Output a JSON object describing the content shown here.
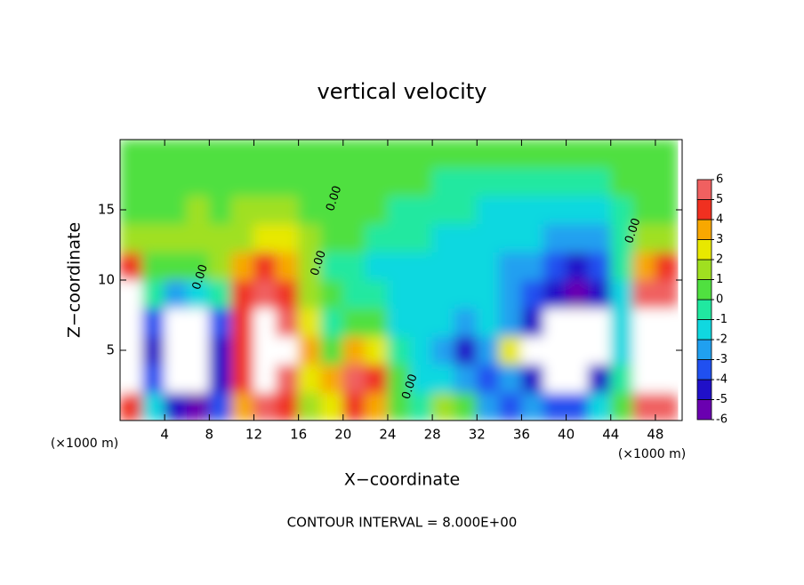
{
  "chart_data": {
    "type": "contour",
    "title": "vertical velocity",
    "x_label": "X−coordinate",
    "y_label": "Z−coordinate",
    "x_unit": "(×1000 m)",
    "footer": "CONTOUR INTERVAL = 8.000E+00",
    "xlim": [
      0,
      50.4
    ],
    "ylim": [
      0,
      20
    ],
    "xticks": [
      4,
      8,
      12,
      16,
      20,
      24,
      28,
      32,
      36,
      40,
      44,
      48
    ],
    "yticks": [
      5,
      10,
      15
    ],
    "x": [
      1,
      3,
      5,
      7,
      9,
      11,
      13,
      15,
      17,
      19,
      21,
      23,
      25,
      27,
      29,
      31,
      33,
      35,
      37,
      39,
      41,
      43,
      45,
      47,
      49
    ],
    "y": [
      1,
      3,
      5,
      7,
      9,
      11,
      13,
      15,
      17,
      19
    ],
    "values": [
      [
        4,
        8,
        8,
        8,
        7,
        4,
        1,
        0.5,
        0.5,
        0.5
      ],
      [
        -2,
        -4,
        -5,
        -4,
        -1,
        0.5,
        1,
        0.5,
        0.5,
        0.5
      ],
      [
        -5,
        -8,
        -8,
        -7,
        -3,
        0.5,
        1,
        0.5,
        0.5,
        0.5
      ],
      [
        -6,
        -8,
        -8,
        -8,
        -2,
        0.5,
        1.5,
        1,
        0.5,
        0.5
      ],
      [
        -4,
        -5,
        -5,
        -4,
        -1,
        1,
        1,
        0.5,
        0.5,
        0.5
      ],
      [
        3,
        4,
        4,
        4,
        4,
        3,
        1.5,
        1,
        0.5,
        0.5
      ],
      [
        5,
        8,
        8,
        8,
        5,
        4,
        2,
        1,
        0.5,
        0.5
      ],
      [
        4,
        6,
        7,
        6,
        4,
        3,
        2,
        1,
        0.5,
        0.5
      ],
      [
        1,
        2,
        3,
        2,
        1,
        1,
        1,
        0.5,
        0.5,
        0.5
      ],
      [
        2,
        3,
        0,
        -1,
        0,
        -0.5,
        0.5,
        0.5,
        0.5,
        0.5
      ],
      [
        4,
        6,
        3,
        0,
        -1,
        -1,
        0.5,
        0.5,
        0.5,
        0.5
      ],
      [
        3,
        4,
        2,
        0,
        -1,
        -1.5,
        -0.5,
        0.5,
        0.5,
        0.5
      ],
      [
        0,
        0,
        -1,
        -1.5,
        -1.5,
        -1.5,
        -1,
        -0.5,
        0.5,
        0.5
      ],
      [
        -1,
        -1.5,
        -2,
        -2,
        -2,
        -1.5,
        -1,
        -0.5,
        0.5,
        0.5
      ],
      [
        1,
        -2,
        -3,
        -2,
        -2,
        -2,
        -1.5,
        -1,
        -0.5,
        0.5
      ],
      [
        0,
        -3,
        -5,
        -3,
        -2,
        -2,
        -1.5,
        -1,
        -0.5,
        0.5
      ],
      [
        -3,
        -4,
        -3,
        -2,
        -2,
        -2,
        -2,
        -1.5,
        -1,
        0
      ],
      [
        -4,
        -3,
        2,
        -3,
        -3,
        -2.5,
        -2,
        -1.5,
        -1,
        0
      ],
      [
        -3,
        -5,
        -7,
        -5,
        -4,
        -3,
        -2,
        -1.5,
        -1,
        0
      ],
      [
        -4,
        -7,
        -8,
        -7,
        -5,
        -3.5,
        -2.5,
        -2,
        -1,
        0
      ],
      [
        -4,
        -7,
        -8,
        -8,
        -6,
        -5,
        -3,
        -2,
        -1,
        0
      ],
      [
        -2,
        -5,
        -7,
        -7,
        -5,
        -4,
        -2.5,
        -1.5,
        -0.5,
        0.5
      ],
      [
        0,
        -1,
        -2,
        -2,
        -2,
        -1,
        -1,
        -0.5,
        0.5,
        0.5
      ],
      [
        5,
        7,
        7,
        7,
        5,
        3,
        1,
        0.5,
        0.5,
        0.5
      ],
      [
        6,
        8,
        8,
        7,
        6,
        4,
        1,
        0.5,
        0.5,
        0.5
      ]
    ],
    "colorbar": {
      "levels": [
        -6,
        -5,
        -4,
        -3,
        -2,
        -1,
        0,
        1,
        2,
        3,
        4,
        5,
        6
      ],
      "colors": [
        "#6a00b0",
        "#2010c8",
        "#2050f0",
        "#20a0f0",
        "#10d8e0",
        "#20e8a0",
        "#50e040",
        "#a0e020",
        "#e8e800",
        "#f8a800",
        "#f03020",
        "#f06060",
        "#f4a8a8"
      ],
      "out_of_range_color": "#ffffff"
    },
    "contour_labels": [
      {
        "label": "0.00",
        "x": 7.2,
        "y": 10.2
      },
      {
        "label": "0.00",
        "x": 17.8,
        "y": 11.2
      },
      {
        "label": "0.00",
        "x": 19.2,
        "y": 15.8
      },
      {
        "label": "0.00",
        "x": 26,
        "y": 2.4
      },
      {
        "label": "0.00",
        "x": 46,
        "y": 13.5
      }
    ]
  }
}
